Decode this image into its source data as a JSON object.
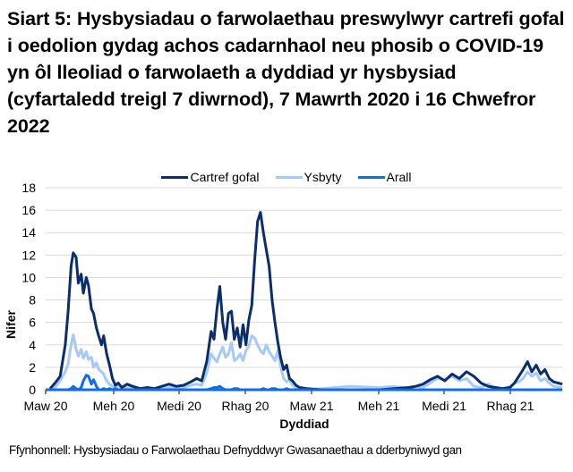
{
  "title": "Siart 5: Hysbysiadau o farwolaethau preswylwyr cartrefi gofal i oedolion gydag achos cadarnhaol neu phosib o COVID-19 yn ôl lleoliad o farwolaeth a dyddiad yr hysbysiad (cyfartaledd treigl 7 diwrnod), 7 Mawrth 2020 i 16 Chwefror 2022",
  "legend": [
    {
      "label": "Cartref gofal",
      "color": "#0b2e6b"
    },
    {
      "label": "Ysbyty",
      "color": "#a6c9f5"
    },
    {
      "label": "Arall",
      "color": "#0f6ee6"
    }
  ],
  "axes": {
    "ylabel": "Nifer",
    "xlabel": "Dyddiad",
    "yticks": [
      "0",
      "2",
      "4",
      "6",
      "8",
      "10",
      "12",
      "14",
      "16",
      "18"
    ],
    "xticks": [
      "Maw 20",
      "Meh 20",
      "Medi 20",
      "Rhag 20",
      "Maw 21",
      "Meh 21",
      "Medi 21",
      "Rhag 21"
    ]
  },
  "source": "Ffynhonnell: Hysbysiadau o Farwolaethau Defnyddwyr Gwasanaethau a dderbyniwyd gan",
  "chart_data": {
    "type": "line",
    "title": "Siart 5: Hysbysiadau o farwolaethau preswylwyr cartrefi gofal i oedolion gydag achos cadarnhaol neu phosib o COVID-19 yn ôl lleoliad o farwolaeth a dyddiad yr hysbysiad (cyfartaledd treigl 7 diwrnod), 7 Mawrth 2020 i 16 Chwefror 2022",
    "xlabel": "Dyddiad",
    "ylabel": "Nifer",
    "ylim": [
      0,
      18
    ],
    "yticks": [
      0,
      2,
      4,
      6,
      8,
      10,
      12,
      14,
      16,
      18
    ],
    "xticks": [
      "Maw 20",
      "Meh 20",
      "Medi 20",
      "Rhag 20",
      "Maw 21",
      "Meh 21",
      "Medi 21",
      "Rhag 21"
    ],
    "grid": true,
    "legend_position": "top",
    "x_note": "days since 1 Mar 2020 (Maw 20 tick = 0; each tick ≈ 91.3 days)",
    "x": [
      6,
      13,
      20,
      27,
      31,
      35,
      38,
      42,
      45,
      49,
      52,
      56,
      59,
      63,
      66,
      70,
      73,
      77,
      80,
      84,
      88,
      92,
      96,
      100,
      105,
      112,
      120,
      130,
      140,
      150,
      160,
      170,
      180,
      190,
      200,
      208,
      215,
      222,
      228,
      232,
      236,
      240,
      244,
      248,
      252,
      256,
      260,
      264,
      268,
      272,
      276,
      280,
      284,
      288,
      292,
      296,
      300,
      304,
      308,
      312,
      316,
      320,
      324,
      328,
      332,
      336,
      340,
      345,
      350,
      360,
      380,
      420,
      460,
      480,
      500,
      510,
      520,
      530,
      540,
      550,
      560,
      570,
      580,
      590,
      600,
      610,
      620,
      630,
      640,
      646,
      652,
      658,
      664,
      670,
      676,
      682,
      688,
      694,
      700,
      712
    ],
    "series": [
      {
        "name": "Cartref gofal",
        "color": "#0b2e6b",
        "values": [
          0.1,
          0.6,
          1.2,
          4.0,
          7.0,
          11.0,
          12.2,
          11.8,
          9.5,
          10.3,
          8.6,
          10.0,
          9.3,
          7.2,
          6.8,
          5.5,
          4.8,
          4.0,
          4.8,
          3.2,
          2.2,
          1.0,
          0.4,
          0.6,
          0.2,
          0.5,
          0.3,
          0.1,
          0.2,
          0.1,
          0.3,
          0.5,
          0.3,
          0.4,
          0.7,
          1.0,
          0.8,
          2.5,
          5.2,
          4.5,
          7.2,
          9.2,
          6.0,
          4.5,
          6.8,
          7.0,
          4.5,
          5.5,
          3.8,
          5.8,
          4.0,
          6.2,
          7.5,
          11.5,
          15.0,
          15.8,
          14.0,
          12.5,
          11.0,
          8.0,
          6.0,
          4.2,
          2.8,
          1.8,
          2.2,
          1.0,
          0.8,
          0.4,
          0.2,
          0.1,
          0.0,
          0.0,
          0.0,
          0.1,
          0.2,
          0.3,
          0.5,
          0.9,
          1.2,
          0.8,
          1.4,
          1.0,
          1.6,
          1.2,
          0.6,
          0.3,
          0.2,
          0.1,
          0.2,
          0.6,
          1.2,
          1.8,
          2.5,
          1.6,
          2.2,
          1.4,
          1.8,
          1.0,
          0.7,
          0.5
        ]
      },
      {
        "name": "Ysbyty",
        "color": "#a6c9f5",
        "values": [
          0.0,
          0.2,
          0.8,
          1.6,
          2.3,
          4.0,
          4.9,
          3.6,
          3.0,
          3.6,
          2.8,
          3.4,
          2.7,
          2.9,
          2.0,
          2.4,
          1.8,
          1.6,
          1.4,
          0.8,
          0.5,
          0.3,
          0.2,
          0.4,
          0.1,
          0.2,
          0.1,
          0.0,
          0.1,
          0.0,
          0.1,
          0.2,
          0.1,
          0.2,
          0.4,
          0.5,
          0.4,
          1.5,
          3.2,
          2.8,
          2.5,
          3.2,
          3.8,
          2.9,
          3.2,
          4.2,
          2.6,
          2.8,
          3.2,
          2.6,
          3.5,
          3.9,
          4.8,
          4.6,
          4.0,
          3.5,
          3.2,
          4.0,
          3.4,
          3.0,
          2.6,
          3.5,
          2.0,
          1.0,
          0.7,
          0.9,
          0.4,
          0.2,
          0.1,
          0.0,
          0.1,
          0.3,
          0.2,
          0.3,
          0.1,
          0.3,
          0.2,
          0.6,
          1.0,
          0.9,
          1.2,
          0.8,
          1.0,
          0.3,
          0.2,
          0.5,
          0.1,
          0.1,
          0.3,
          0.6,
          0.7,
          1.0,
          1.6,
          1.2,
          1.5,
          0.8,
          1.0,
          0.6,
          0.3,
          0.2
        ]
      },
      {
        "name": "Arall",
        "color": "#0f6ee6",
        "values": [
          0.0,
          0.0,
          0.0,
          0.0,
          0.0,
          0.1,
          0.3,
          0.1,
          0.0,
          0.2,
          0.8,
          1.3,
          1.2,
          0.5,
          0.9,
          0.3,
          0.0,
          0.0,
          0.1,
          0.0,
          0.1,
          0.0,
          0.1,
          0.0,
          0.0,
          0.0,
          0.0,
          0.0,
          0.0,
          0.0,
          0.0,
          0.0,
          0.0,
          0.0,
          0.0,
          0.0,
          0.0,
          0.0,
          0.1,
          0.2,
          0.2,
          0.3,
          0.1,
          0.0,
          0.0,
          0.0,
          0.1,
          0.1,
          0.0,
          0.0,
          0.0,
          0.0,
          0.0,
          0.0,
          0.0,
          0.0,
          0.1,
          0.0,
          0.0,
          0.1,
          0.1,
          0.0,
          0.0,
          0.0,
          0.1,
          0.0,
          0.0,
          0.0,
          0.0,
          0.0,
          0.0,
          0.0,
          0.0,
          0.0,
          0.0,
          0.0,
          0.0,
          0.0,
          0.0,
          0.0,
          0.0,
          0.0,
          0.0,
          0.0,
          0.0,
          0.0,
          0.0,
          0.0,
          0.0,
          0.0,
          0.0,
          0.0,
          0.0,
          0.0,
          0.0,
          0.0,
          0.0,
          0.0,
          0.0,
          0.0
        ]
      }
    ]
  }
}
